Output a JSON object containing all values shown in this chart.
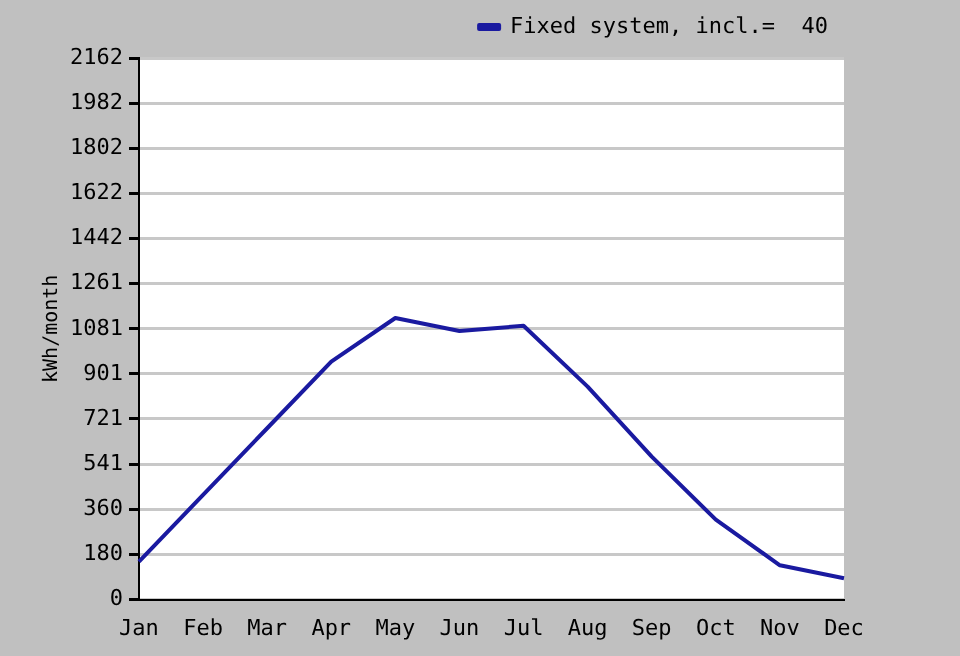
{
  "chart_data": {
    "type": "line",
    "ylabel": "kWh/month",
    "categories": [
      "Jan",
      "Feb",
      "Mar",
      "Apr",
      "May",
      "Jun",
      "Jul",
      "Aug",
      "Sep",
      "Oct",
      "Nov",
      "Dec"
    ],
    "series": [
      {
        "name": "Fixed system, incl.=  40",
        "color": "#1a1aa0",
        "values": [
          152,
          418,
          684,
          950,
          1124,
          1072,
          1093,
          850,
          571,
          319,
          137,
          85
        ]
      }
    ],
    "ylim": [
      0,
      2162
    ],
    "yticks": [
      0,
      180,
      360,
      541,
      721,
      901,
      1081,
      1261,
      1442,
      1622,
      1802,
      1982,
      2162
    ],
    "grid": "y",
    "legend": "top right",
    "marker": "none",
    "line_style": "solid"
  }
}
